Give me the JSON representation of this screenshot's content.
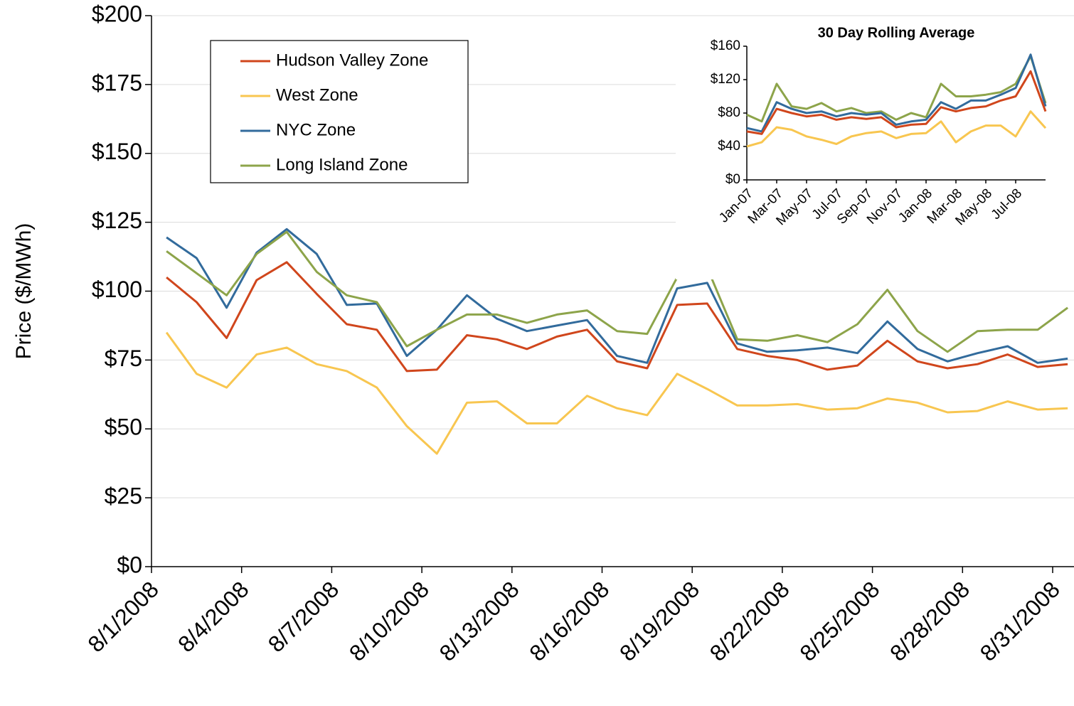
{
  "chart_data": [
    {
      "type": "line",
      "y_label": "Price ($/MWh)",
      "categories": [
        "8/1/2008",
        null,
        null,
        "8/4/2008",
        null,
        null,
        "8/7/2008",
        null,
        null,
        "8/10/2008",
        null,
        null,
        "8/13/2008",
        null,
        null,
        "8/16/2008",
        null,
        null,
        "8/19/2008",
        null,
        null,
        "8/22/2008",
        null,
        null,
        "8/25/2008",
        null,
        null,
        "8/28/2008",
        null,
        null,
        "8/31/2008"
      ],
      "ylim": [
        0,
        200
      ],
      "yticks": [
        {
          "value": 0,
          "label": "$0"
        },
        {
          "value": 25,
          "label": "$25"
        },
        {
          "value": 50,
          "label": "$50"
        },
        {
          "value": 75,
          "label": "$75"
        },
        {
          "value": 100,
          "label": "$100"
        },
        {
          "value": 125,
          "label": "$125"
        },
        {
          "value": 150,
          "label": "$150"
        },
        {
          "value": 175,
          "label": "$175"
        },
        {
          "value": 200,
          "label": "$200"
        }
      ],
      "grid": true,
      "legend": "upper left",
      "series": [
        {
          "name": "Hudson Valley Zone",
          "color": "#d0461c",
          "values": [
            105,
            96,
            83,
            104,
            110.5,
            99,
            88,
            86,
            71,
            71.5,
            84,
            82.5,
            79,
            83.5,
            86,
            74.5,
            72,
            95,
            95.5,
            79,
            76.5,
            75,
            71.5,
            73,
            82,
            74.5,
            72,
            73.5,
            77,
            72.5,
            73.5
          ]
        },
        {
          "name": "West Zone",
          "color": "#f8c650",
          "values": [
            85,
            70,
            65,
            77,
            79.5,
            73.5,
            71,
            65,
            51,
            41,
            59.5,
            60,
            52,
            52,
            62,
            57.5,
            55,
            70,
            64.5,
            58.5,
            58.5,
            59,
            57,
            57.5,
            61,
            59.5,
            56,
            56.5,
            60,
            57,
            57.5
          ]
        },
        {
          "name": "NYC Zone",
          "color": "#326b9c",
          "values": [
            119.5,
            112,
            94,
            114,
            122.5,
            113.5,
            95,
            95.5,
            76.5,
            86,
            98.5,
            90,
            85.5,
            87.5,
            89.5,
            76.5,
            74,
            101,
            103,
            81,
            78,
            78.5,
            79.5,
            77.5,
            89,
            79,
            74.5,
            77.5,
            80,
            74,
            75.5
          ]
        },
        {
          "name": "Long Island Zone",
          "color": "#8da44a",
          "values": [
            114.5,
            106.5,
            98.5,
            113.5,
            121.5,
            107,
            98.5,
            96,
            80,
            86,
            91.5,
            91.5,
            88.5,
            91.5,
            93,
            85.5,
            84.5,
            105,
            108.5,
            82.5,
            82,
            84,
            81.5,
            88,
            100.5,
            85.5,
            78,
            85.5,
            86,
            86,
            94
          ]
        }
      ]
    },
    {
      "type": "line",
      "title": "30 Day Rolling Average",
      "categories": [
        "Jan-07",
        null,
        "Mar-07",
        null,
        "May-07",
        null,
        "Jul-07",
        null,
        "Sep-07",
        null,
        "Nov-07",
        null,
        "Jan-08",
        null,
        "Mar-08",
        null,
        "May-08",
        null,
        "Jul-08",
        null,
        null
      ],
      "ylim": [
        0,
        160
      ],
      "yticks": [
        {
          "value": 0,
          "label": "$0"
        },
        {
          "value": 40,
          "label": "$40"
        },
        {
          "value": 80,
          "label": "$80"
        },
        {
          "value": 120,
          "label": "$120"
        },
        {
          "value": 160,
          "label": "$160"
        }
      ],
      "grid": false,
      "series": [
        {
          "color": "#8da44a",
          "values": [
            78,
            70,
            115,
            88,
            85,
            92,
            82,
            86,
            80,
            82,
            72,
            80,
            75,
            115,
            100,
            100,
            102,
            105,
            115,
            148,
            92
          ]
        },
        {
          "color": "#326b9c",
          "values": [
            62,
            58,
            93,
            85,
            80,
            82,
            76,
            80,
            78,
            80,
            66,
            70,
            72,
            93,
            85,
            95,
            95,
            102,
            110,
            150,
            88
          ]
        },
        {
          "color": "#d0461c",
          "values": [
            58,
            55,
            85,
            80,
            76,
            78,
            72,
            75,
            73,
            75,
            63,
            66,
            67,
            87,
            82,
            86,
            88,
            95,
            100,
            130,
            82
          ]
        },
        {
          "color": "#f8c650",
          "values": [
            40,
            45,
            63,
            60,
            52,
            48,
            43,
            52,
            56,
            58,
            50,
            55,
            56,
            70,
            45,
            58,
            65,
            65,
            52,
            82,
            62
          ]
        }
      ]
    }
  ]
}
